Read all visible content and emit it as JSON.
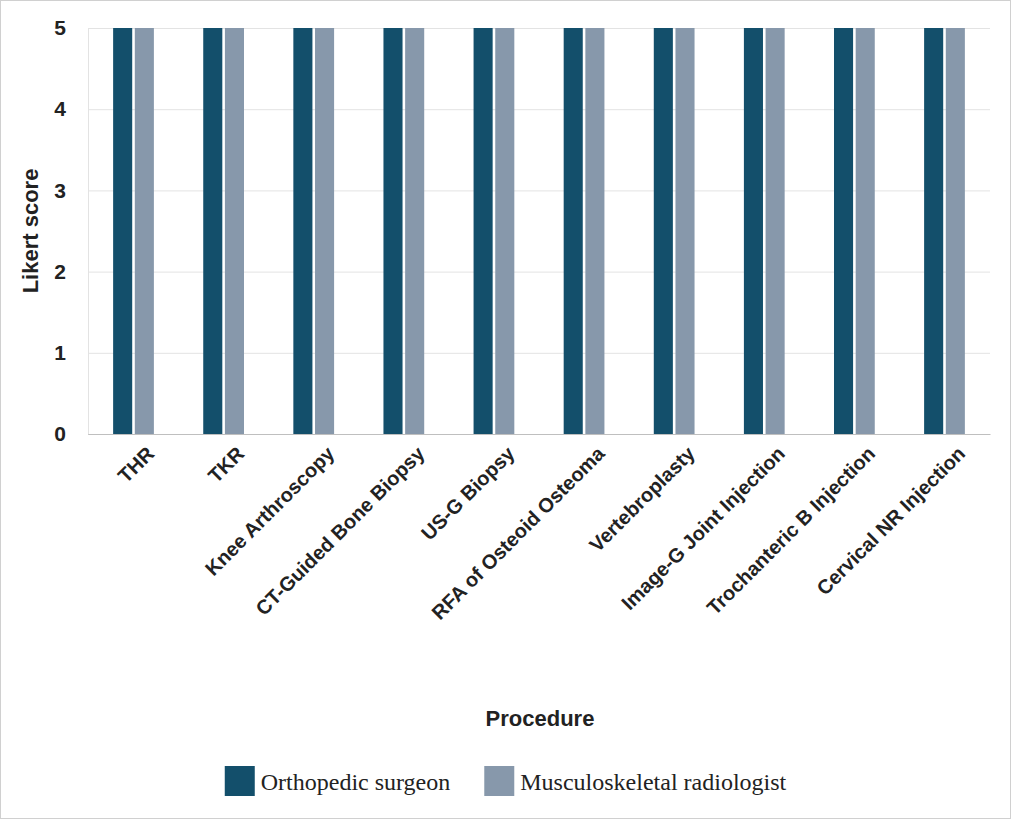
{
  "chart_data": {
    "type": "bar",
    "x_label": "Procedure",
    "y_label": "Likert score",
    "categories": [
      "THR",
      "TKR",
      "Knee Arthroscopy",
      "CT-Guided Bone Biopsy",
      "US-G Biopsy",
      "RFA of Osteoid Osteoma",
      "Vertebroplasty",
      "Image-G Joint Injection",
      "Trochanteric B Injection",
      "Cervical NR Injection"
    ],
    "series": [
      {
        "name": "Orthopedic surgeon",
        "color": "#134f6b",
        "values": [
          5,
          5,
          5,
          5,
          5,
          5,
          5,
          5,
          5,
          5
        ]
      },
      {
        "name": "Musculoskeletal radiologist",
        "color": "#8798ab",
        "values": [
          5,
          5,
          5,
          5,
          5,
          5,
          5,
          5,
          5,
          5
        ]
      }
    ],
    "ylim": [
      0,
      5
    ],
    "yticks": [
      0,
      1,
      2,
      3,
      4,
      5
    ],
    "grid": true,
    "legend": "bottom"
  }
}
